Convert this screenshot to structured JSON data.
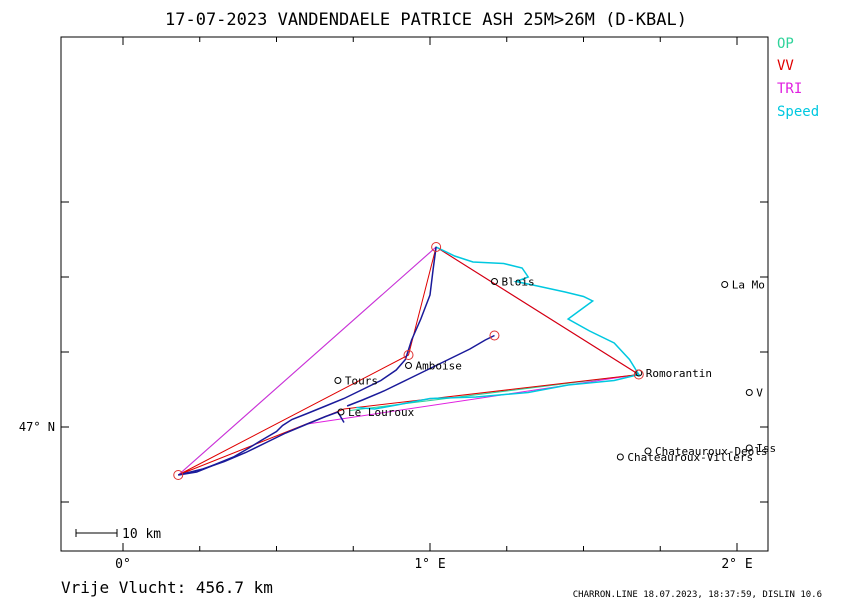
{
  "header": {
    "title": "17-07-2023   VANDENDAELE PATRICE   ASH 25M>26M (D-KBAL)"
  },
  "legend": [
    {
      "label": "OP",
      "color": "#2fd39a"
    },
    {
      "label": "VV",
      "color": "#e00000"
    },
    {
      "label": "TRI",
      "color": "#e020e0"
    },
    {
      "label": "Speed",
      "color": "#00c8e0"
    }
  ],
  "axes": {
    "x_ticks": [
      {
        "value": 0,
        "label": "0°"
      },
      {
        "value": 1,
        "label": "1° E"
      },
      {
        "value": 2,
        "label": "2° E"
      }
    ],
    "y_ticks": [
      {
        "value": 47,
        "label": "47° N"
      }
    ]
  },
  "scale_bar": {
    "label": "10 km"
  },
  "footer": {
    "distance": "Vrije Vlucht:  456.7 km",
    "credit": "CHARRON.LINE 18.07.2023, 18:37:59, DISLIN 10.6"
  },
  "towns": [
    {
      "name": "Blois",
      "lon": 1.21,
      "lat": 47.97
    },
    {
      "name": "La Mo",
      "lon": 1.96,
      "lat": 47.95
    },
    {
      "name": "Amboise",
      "lon": 0.93,
      "lat": 47.41
    },
    {
      "name": "Tours",
      "lon": 0.7,
      "lat": 47.31
    },
    {
      "name": "Romorantin",
      "lon": 1.68,
      "lat": 47.36
    },
    {
      "name": "V",
      "lon": 2.04,
      "lat": 47.23
    },
    {
      "name": "Le Louroux",
      "lon": 0.71,
      "lat": 47.1
    },
    {
      "name": "Iss",
      "lon": 2.04,
      "lat": 46.86
    },
    {
      "name": "Chateauroux-Deols",
      "lon": 1.71,
      "lat": 46.84
    },
    {
      "name": "Chateauroux-Villers",
      "lon": 1.62,
      "lat": 46.8
    }
  ],
  "turnpoints": [
    {
      "lon": 0.18,
      "lat": 46.68
    },
    {
      "lon": 1.02,
      "lat": 48.2
    },
    {
      "lon": 0.93,
      "lat": 47.48
    },
    {
      "lon": 1.21,
      "lat": 47.61
    },
    {
      "lon": 1.68,
      "lat": 47.35
    }
  ],
  "routes": {
    "op": [
      [
        0.18,
        46.68
      ],
      [
        1.02,
        48.2
      ],
      [
        1.68,
        47.35
      ],
      [
        0.74,
        47.11
      ]
    ],
    "vv": [
      [
        0.18,
        46.68
      ],
      [
        0.93,
        47.48
      ],
      [
        1.02,
        48.2
      ],
      [
        1.68,
        47.35
      ],
      [
        0.72,
        47.12
      ],
      [
        0.18,
        46.68
      ]
    ],
    "tri": [
      [
        0.18,
        46.68
      ],
      [
        1.02,
        48.2
      ],
      [
        1.68,
        47.35
      ],
      [
        0.6,
        47.02
      ]
    ]
  },
  "flight_track": [
    [
      0.18,
      46.68
    ],
    [
      0.24,
      46.7
    ],
    [
      0.3,
      46.75
    ],
    [
      0.36,
      46.8
    ],
    [
      0.41,
      46.86
    ],
    [
      0.45,
      46.91
    ],
    [
      0.5,
      46.97
    ],
    [
      0.52,
      47.01
    ],
    [
      0.55,
      47.05
    ],
    [
      0.6,
      47.09
    ],
    [
      0.66,
      47.14
    ],
    [
      0.72,
      47.19
    ],
    [
      0.78,
      47.25
    ],
    [
      0.84,
      47.31
    ],
    [
      0.89,
      47.38
    ],
    [
      0.92,
      47.45
    ],
    [
      0.94,
      47.58
    ],
    [
      0.97,
      47.72
    ],
    [
      1.0,
      47.88
    ],
    [
      1.01,
      48.05
    ],
    [
      1.02,
      48.2
    ]
  ],
  "flight_track_2": [
    [
      0.73,
      47.14
    ],
    [
      0.78,
      47.18
    ],
    [
      0.85,
      47.24
    ],
    [
      0.93,
      47.32
    ],
    [
      1.0,
      47.39
    ],
    [
      1.07,
      47.46
    ],
    [
      1.13,
      47.52
    ],
    [
      1.18,
      47.58
    ],
    [
      1.21,
      47.61
    ]
  ],
  "flight_track_3": [
    [
      0.18,
      46.68
    ],
    [
      0.26,
      46.72
    ],
    [
      0.33,
      46.77
    ],
    [
      0.4,
      46.83
    ],
    [
      0.47,
      46.9
    ],
    [
      0.53,
      46.96
    ],
    [
      0.6,
      47.02
    ],
    [
      0.66,
      47.07
    ],
    [
      0.7,
      47.1
    ],
    [
      0.72,
      47.03
    ]
  ],
  "speed_track": [
    [
      1.02,
      48.2
    ],
    [
      1.08,
      48.14
    ],
    [
      1.14,
      48.1
    ],
    [
      1.24,
      48.09
    ],
    [
      1.3,
      48.06
    ],
    [
      1.32,
      48.0
    ],
    [
      1.28,
      47.97
    ],
    [
      1.35,
      47.94
    ],
    [
      1.44,
      47.9
    ],
    [
      1.5,
      47.87
    ],
    [
      1.53,
      47.84
    ],
    [
      1.49,
      47.78
    ],
    [
      1.45,
      47.72
    ],
    [
      1.52,
      47.64
    ],
    [
      1.6,
      47.56
    ],
    [
      1.65,
      47.45
    ],
    [
      1.68,
      47.35
    ],
    [
      1.6,
      47.31
    ],
    [
      1.45,
      47.28
    ],
    [
      1.32,
      47.23
    ],
    [
      1.15,
      47.2
    ],
    [
      1.0,
      47.19
    ],
    [
      0.9,
      47.15
    ],
    [
      0.82,
      47.12
    ],
    [
      0.76,
      47.13
    ]
  ]
}
